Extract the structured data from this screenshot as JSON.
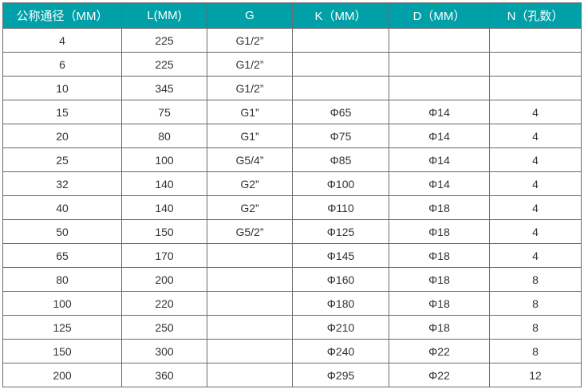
{
  "header_color": "#00a0a8",
  "columns": [
    "公称通径（MM）",
    "L(MM)",
    "G",
    "K（MM）",
    "D（MM）",
    "N（孔数）"
  ],
  "rows": [
    [
      "4",
      "225",
      "G1/2”",
      "",
      "",
      ""
    ],
    [
      "6",
      "225",
      "G1/2”",
      "",
      "",
      ""
    ],
    [
      "10",
      "345",
      "G1/2”",
      "",
      "",
      ""
    ],
    [
      "15",
      "75",
      "G1”",
      "Φ65",
      "Φ14",
      "4"
    ],
    [
      "20",
      "80",
      "G1”",
      "Φ75",
      "Φ14",
      "4"
    ],
    [
      "25",
      "100",
      "G5/4”",
      "Φ85",
      "Φ14",
      "4"
    ],
    [
      "32",
      "140",
      "G2”",
      "Φ100",
      "Φ14",
      "4"
    ],
    [
      "40",
      "140",
      "G2”",
      "Φ110",
      "Φ18",
      "4"
    ],
    [
      "50",
      "150",
      "G5/2”",
      "Φ125",
      "Φ18",
      "4"
    ],
    [
      "65",
      "170",
      "",
      "Φ145",
      "Φ18",
      "4"
    ],
    [
      "80",
      "200",
      "",
      "Φ160",
      "Φ18",
      "8"
    ],
    [
      "100",
      "220",
      "",
      "Φ180",
      "Φ18",
      "8"
    ],
    [
      "125",
      "250",
      "",
      "Φ210",
      "Φ18",
      "8"
    ],
    [
      "150",
      "300",
      "",
      "Φ240",
      "Φ22",
      "8"
    ],
    [
      "200",
      "360",
      "",
      "Φ295",
      "Φ22",
      "12"
    ]
  ]
}
